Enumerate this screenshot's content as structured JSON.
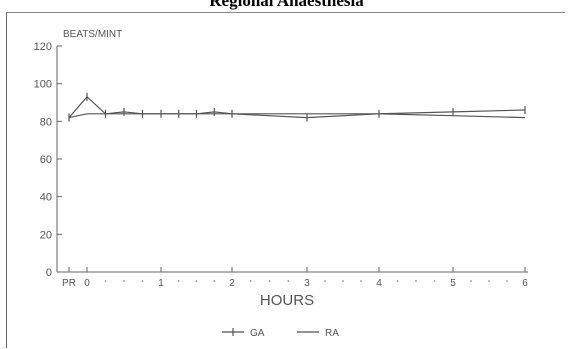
{
  "page": {
    "title": "Regional Anaesthesia"
  },
  "chart_data": {
    "type": "line",
    "title": "Regional Anaesthesia",
    "ylabel": "BEATS/MINT",
    "xlabel": "HOURS",
    "ylim": [
      0,
      120
    ],
    "y_ticks": [
      0,
      20,
      40,
      60,
      80,
      100,
      120
    ],
    "x_tick_labels": [
      "PR",
      "0",
      "1",
      "2",
      "3",
      "4",
      "5",
      "6"
    ],
    "grid": false,
    "legend_position": "bottom-center",
    "series": [
      {
        "name": "GA",
        "marker": "vertical-tick",
        "x": [
          "PR",
          "0",
          "0.25",
          "0.5",
          "0.75",
          "1",
          "1.25",
          "1.5",
          "1.75",
          "2",
          "3",
          "4",
          "5",
          "6"
        ],
        "values": [
          82,
          93,
          84,
          85,
          84,
          84,
          84,
          84,
          85,
          84,
          82,
          84,
          85,
          86
        ]
      },
      {
        "name": "RA",
        "marker": "none",
        "x": [
          "PR",
          "0",
          "0.25",
          "0.5",
          "0.75",
          "1",
          "1.25",
          "1.5",
          "1.75",
          "2",
          "3",
          "4",
          "5",
          "6"
        ],
        "values": [
          82,
          84,
          84,
          84,
          84,
          84,
          84,
          84,
          84,
          84,
          84,
          84,
          83,
          82
        ]
      }
    ],
    "colors": {
      "line": "#555555",
      "axis": "#666666"
    }
  }
}
